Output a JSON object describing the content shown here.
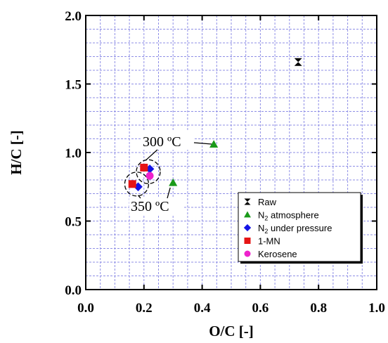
{
  "chart_data": {
    "type": "scatter",
    "xlabel": "O/C [-]",
    "ylabel": "H/C [-]",
    "xlim": [
      0.0,
      1.0
    ],
    "ylim": [
      0.0,
      2.0
    ],
    "x_ticks": [
      "0.0",
      "0.2",
      "0.4",
      "0.6",
      "0.8",
      "1.0"
    ],
    "y_ticks": [
      "0.0",
      "0.5",
      "1.0",
      "1.5",
      "2.0"
    ],
    "x_tick_values": [
      0.0,
      0.2,
      0.4,
      0.6,
      0.8,
      1.0
    ],
    "y_tick_values": [
      0.0,
      0.5,
      1.0,
      1.5,
      2.0
    ],
    "grid": true,
    "legend_position": "bottom-right",
    "series": [
      {
        "name": "Raw",
        "marker": "hourglass",
        "color": "#000000",
        "points": [
          [
            0.73,
            1.66
          ]
        ]
      },
      {
        "name": "N2 atmosphere",
        "name_base": "N",
        "name_sub": "2",
        "name_rest": " atmosphere",
        "marker": "triangle",
        "color": "#1a9a1a",
        "points": [
          [
            0.44,
            1.06
          ],
          [
            0.3,
            0.78
          ]
        ]
      },
      {
        "name": "N2 under pressure",
        "name_base": "N",
        "name_sub": "2",
        "name_rest": " under pressure",
        "marker": "diamond",
        "color": "#1414e6",
        "points": [
          [
            0.22,
            0.88
          ],
          [
            0.18,
            0.75
          ]
        ]
      },
      {
        "name": "1-MN",
        "marker": "square",
        "color": "#e61414",
        "points": [
          [
            0.2,
            0.89
          ],
          [
            0.16,
            0.77
          ]
        ]
      },
      {
        "name": "Kerosene",
        "marker": "circle",
        "color": "#ee22cc",
        "points": [
          [
            0.22,
            0.83
          ]
        ]
      }
    ],
    "annotations": [
      {
        "text": "300 ºC",
        "group_center": [
          0.215,
          0.86
        ]
      },
      {
        "text": "350 ºC",
        "group_center": [
          0.175,
          0.77
        ]
      }
    ]
  }
}
